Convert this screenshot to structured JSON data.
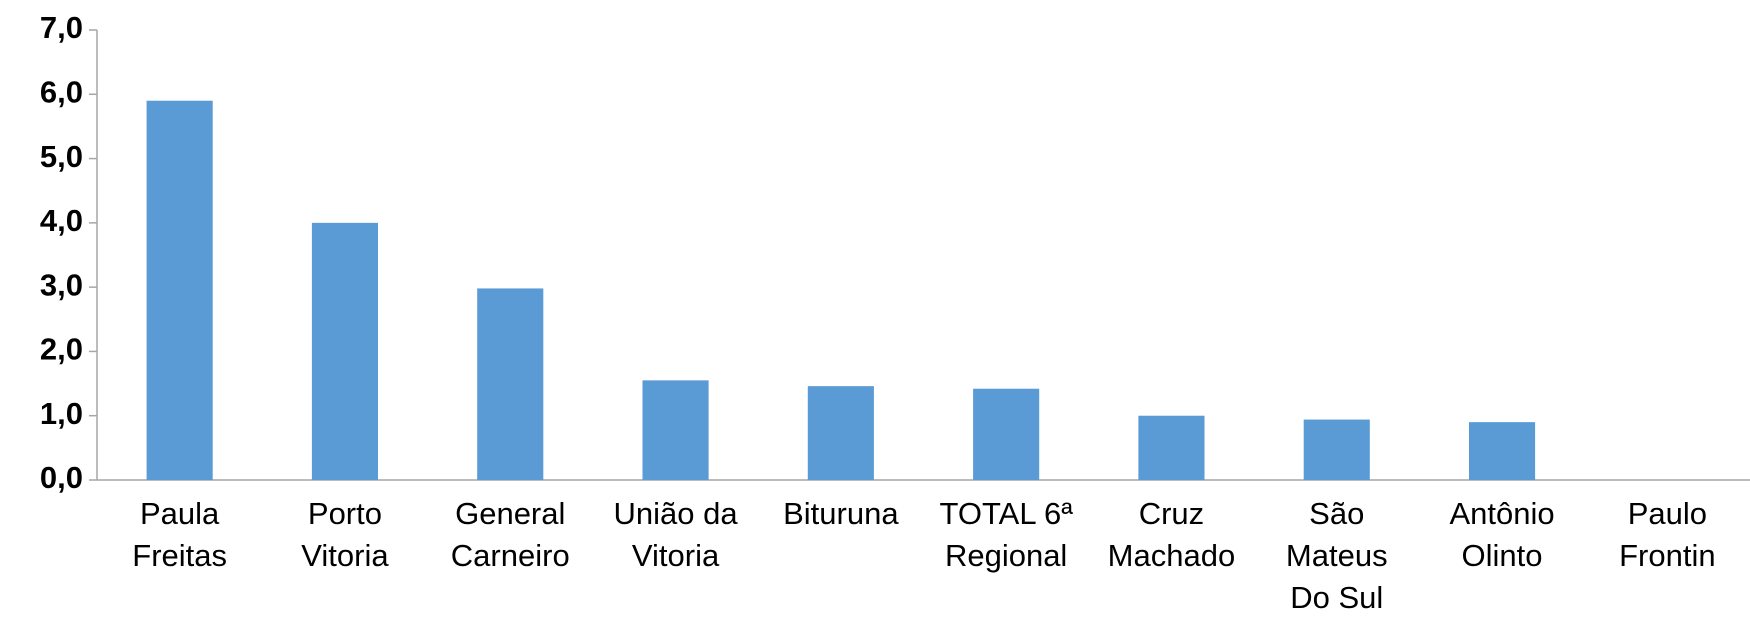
{
  "chart_data": {
    "type": "bar",
    "categories": [
      "Paula Freitas",
      "Porto Vitoria",
      "General Carneiro",
      "União da Vitoria",
      "Bituruna",
      "TOTAL 6ª Regional",
      "Cruz Machado",
      "São Mateus Do Sul",
      "Antônio Olinto",
      "Paulo Frontin"
    ],
    "values": [
      5.9,
      4.0,
      2.98,
      1.55,
      1.46,
      1.42,
      1.0,
      0.94,
      0.9,
      0
    ],
    "color": "#5b9bd5",
    "ylim": [
      0,
      7
    ],
    "yticks": [
      {
        "value": 0,
        "label": "0,0"
      },
      {
        "value": 1,
        "label": "1,0"
      },
      {
        "value": 2,
        "label": "2,0"
      },
      {
        "value": 3,
        "label": "3,0"
      },
      {
        "value": 4,
        "label": "4,0"
      },
      {
        "value": 5,
        "label": "5,0"
      },
      {
        "value": 6,
        "label": "6,0"
      },
      {
        "value": 7,
        "label": "7,0"
      }
    ],
    "grid": false
  }
}
